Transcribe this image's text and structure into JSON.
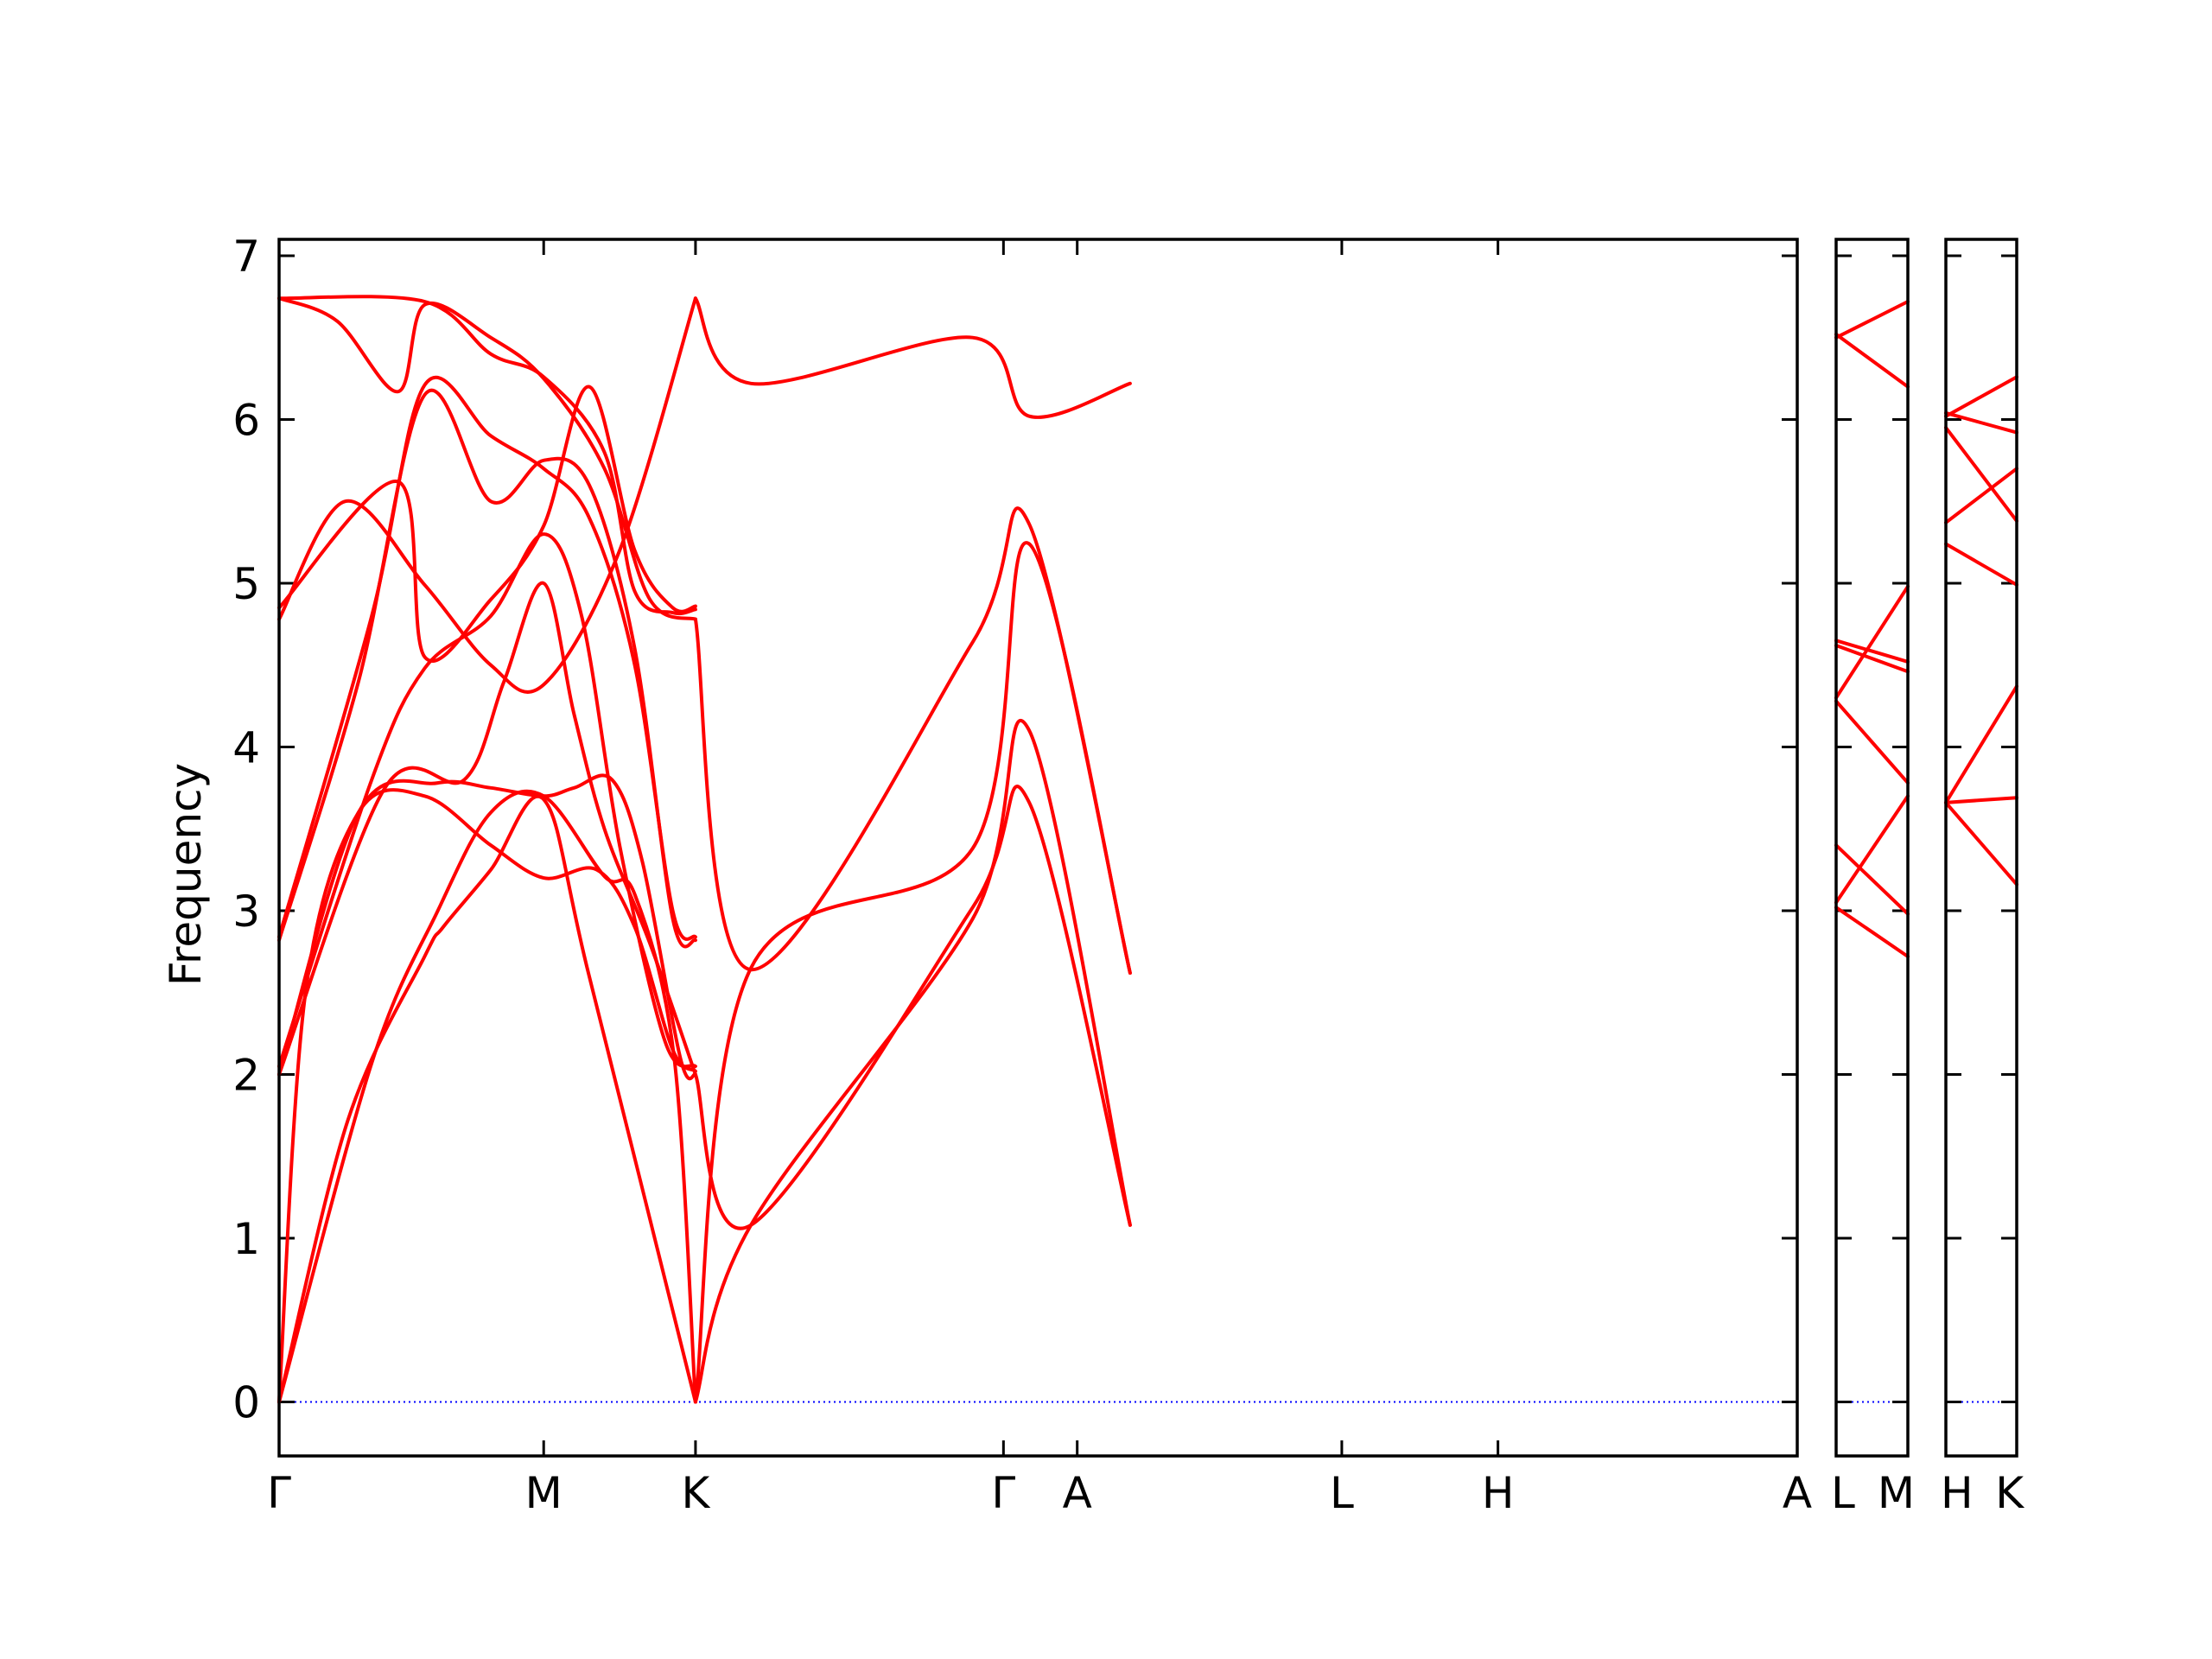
{
  "chart_data": {
    "type": "line",
    "title": "",
    "ylabel": "Frequency",
    "xlabel": "",
    "ylim": [
      -0.33,
      7.1
    ],
    "yticks": [
      "0",
      "1",
      "2",
      "3",
      "4",
      "5",
      "6",
      "7"
    ],
    "grid": false,
    "colors": {
      "bands": "#ff0000",
      "zero_line": "#0000ff",
      "frame": "#000000"
    },
    "panels": [
      {
        "path": [
          "Γ",
          "M",
          "K",
          "Γ",
          "A",
          "L",
          "H",
          "A"
        ],
        "bands": [
          {
            "name": "",
            "points": [
              [
                0,
                0
              ],
              [
                0.26,
                1.72
              ],
              [
                0.55,
                2.72
              ],
              [
                0.62,
                2.9
              ],
              [
                0.8,
                3.25
              ],
              [
                1.0,
                3.68
              ],
              [
                1.3,
                2.6
              ],
              [
                2.0,
                0
              ]
            ]
          },
          {
            "name": "",
            "points": [
              [
                0,
                0
              ],
              [
                0.35,
                2.07
              ],
              [
                0.6,
                3.0
              ],
              [
                0.8,
                3.6
              ],
              [
                1.0,
                3.7
              ],
              [
                1.4,
                3.21
              ],
              [
                1.6,
                3.1
              ],
              [
                1.86,
                2.1
              ],
              [
                2.0,
                0
              ]
            ]
          },
          {
            "name": "",
            "points": [
              [
                0,
                0
              ],
              [
                0.1,
                2.5
              ],
              [
                0.3,
                3.6
              ],
              [
                0.55,
                3.7
              ],
              [
                0.8,
                3.4
              ],
              [
                1.0,
                3.2
              ],
              [
                1.35,
                3.25
              ],
              [
                1.6,
                2.9
              ],
              [
                1.85,
                2.15
              ],
              [
                2.0,
                2.02
              ]
            ]
          },
          {
            "name": "",
            "points": [
              [
                0,
                2.0
              ],
              [
                0.3,
                3.6
              ],
              [
                0.6,
                3.78
              ],
              [
                0.8,
                3.75
              ],
              [
                1.0,
                3.7
              ],
              [
                1.2,
                3.75
              ],
              [
                1.45,
                3.8
              ],
              [
                1.65,
                3.3
              ],
              [
                1.9,
                2.1
              ],
              [
                2.0,
                2.0
              ]
            ]
          },
          {
            "name": "",
            "points": [
              [
                0,
                2.0
              ],
              [
                0.4,
                3.75
              ],
              [
                0.7,
                3.8
              ],
              [
                0.85,
                4.4
              ],
              [
                1.0,
                5.0
              ],
              [
                1.2,
                4.2
              ],
              [
                1.4,
                3.5
              ],
              [
                1.7,
                2.8
              ],
              [
                2.0,
                2.0
              ]
            ]
          },
          {
            "name": "",
            "points": [
              [
                0,
                2.05
              ],
              [
                0.35,
                3.8
              ],
              [
                0.55,
                4.48
              ],
              [
                0.8,
                4.8
              ],
              [
                1.0,
                5.3
              ],
              [
                1.25,
                4.8
              ],
              [
                1.5,
                3.4
              ],
              [
                1.8,
                2.2
              ],
              [
                2.0,
                2.05
              ]
            ]
          },
          {
            "name": "",
            "points": [
              [
                0,
                2.82
              ],
              [
                0.3,
                4.4
              ],
              [
                0.55,
                6.15
              ],
              [
                0.8,
                5.5
              ],
              [
                1.0,
                5.75
              ],
              [
                1.3,
                5.6
              ],
              [
                1.6,
                4.6
              ],
              [
                1.85,
                2.95
              ],
              [
                2.0,
                2.82
              ]
            ]
          },
          {
            "name": "",
            "points": [
              [
                0,
                2.84
              ],
              [
                0.35,
                4.8
              ],
              [
                0.55,
                6.21
              ],
              [
                0.8,
                5.9
              ],
              [
                1.0,
                5.7
              ],
              [
                1.3,
                5.4
              ],
              [
                1.6,
                4.5
              ],
              [
                1.85,
                3.0
              ],
              [
                2.0,
                2.84
              ]
            ]
          },
          {
            "name": "",
            "points": [
              [
                0,
                4.78
              ],
              [
                0.25,
                5.5
              ],
              [
                0.55,
                4.99
              ],
              [
                0.8,
                4.5
              ],
              [
                1.0,
                4.38
              ],
              [
                1.5,
                5.2
              ],
              [
                2.0,
                6.74
              ]
            ]
          },
          {
            "name": "",
            "points": [
              [
                0,
                4.85
              ],
              [
                0.45,
                5.62
              ],
              [
                0.55,
                4.55
              ],
              [
                0.8,
                4.9
              ],
              [
                1.0,
                5.35
              ],
              [
                1.3,
                6.2
              ],
              [
                1.6,
                5.2
              ],
              [
                1.85,
                4.85
              ],
              [
                2.0,
                4.86
              ]
            ]
          },
          {
            "name": "",
            "points": [
              [
                0,
                6.74
              ],
              [
                0.22,
                6.6
              ],
              [
                0.45,
                6.17
              ],
              [
                0.55,
                6.7
              ],
              [
                0.8,
                6.5
              ],
              [
                1.0,
                6.25
              ],
              [
                1.4,
                5.7
              ],
              [
                1.7,
                4.9
              ],
              [
                2.0,
                4.78
              ]
            ]
          },
          {
            "name": "",
            "points": [
              [
                0,
                6.74
              ],
              [
                0.55,
                6.72
              ],
              [
                0.8,
                6.4
              ],
              [
                1.0,
                6.26
              ],
              [
                1.4,
                5.8
              ],
              [
                1.6,
                4.95
              ],
              [
                1.85,
                4.82
              ],
              [
                2.0,
                4.84
              ]
            ]
          },
          {
            "name": "",
            "points": [
              [
                2.0,
                0
              ],
              [
                2.18,
                1.08
              ],
              [
                2.9,
                2.95
              ],
              [
                3.35,
                4.1
              ],
              [
                4.2,
                1.08
              ]
            ]
          },
          {
            "name": "",
            "points": [
              [
                2.0,
                0
              ],
              [
                2.18,
                2.65
              ],
              [
                2.9,
                3.38
              ],
              [
                3.35,
                5.24
              ],
              [
                4.2,
                2.62
              ]
            ]
          },
          {
            "name": "",
            "points": [
              [
                2.0,
                2.0
              ],
              [
                2.18,
                1.08
              ],
              [
                2.9,
                3.02
              ],
              [
                3.35,
                3.66
              ],
              [
                4.2,
                1.08
              ]
            ]
          },
          {
            "name": "",
            "points": [
              [
                2.0,
                4.78
              ],
              [
                2.18,
                2.64
              ],
              [
                2.9,
                4.64
              ],
              [
                3.35,
                5.36
              ],
              [
                4.2,
                2.62
              ]
            ]
          },
          {
            "name": "",
            "points": [
              [
                2.0,
                6.74
              ],
              [
                2.18,
                6.22
              ],
              [
                2.9,
                6.5
              ],
              [
                3.35,
                6.02
              ],
              [
                4.2,
                6.22
              ]
            ]
          }
        ]
      },
      {
        "path": [
          "L",
          "M"
        ],
        "bands": [
          {
            "name": "",
            "points": [
              [
                0,
                3.02
              ],
              [
                1,
                2.72
              ]
            ]
          },
          {
            "name": "",
            "points": [
              [
                0,
                3.4
              ],
              [
                1,
                2.98
              ]
            ]
          },
          {
            "name": "",
            "points": [
              [
                0,
                3.05
              ],
              [
                1,
                3.7
              ]
            ]
          },
          {
            "name": "",
            "points": [
              [
                0,
                4.28
              ],
              [
                1,
                3.78
              ]
            ]
          },
          {
            "name": "",
            "points": [
              [
                0,
                4.3
              ],
              [
                1,
                4.98
              ]
            ]
          },
          {
            "name": "",
            "points": [
              [
                0,
                4.65
              ],
              [
                1,
                4.52
              ]
            ]
          },
          {
            "name": "",
            "points": [
              [
                0,
                4.62
              ],
              [
                1,
                4.46
              ]
            ]
          },
          {
            "name": "",
            "points": [
              [
                0,
                6.5
              ],
              [
                1,
                6.72
              ]
            ]
          },
          {
            "name": "",
            "points": [
              [
                0,
                6.52
              ],
              [
                1,
                6.2
              ]
            ]
          }
        ]
      },
      {
        "path": [
          "H",
          "K"
        ],
        "bands": [
          {
            "name": "",
            "points": [
              [
                0,
                3.66
              ],
              [
                1,
                3.16
              ]
            ]
          },
          {
            "name": "",
            "points": [
              [
                0,
                3.66
              ],
              [
                1,
                3.69
              ]
            ]
          },
          {
            "name": "",
            "points": [
              [
                0,
                3.66
              ],
              [
                1,
                4.37
              ]
            ]
          },
          {
            "name": "",
            "points": [
              [
                0,
                5.24
              ],
              [
                1,
                4.99
              ]
            ]
          },
          {
            "name": "",
            "points": [
              [
                0,
                5.37
              ],
              [
                1,
                5.7
              ]
            ]
          },
          {
            "name": "",
            "points": [
              [
                0,
                5.95
              ],
              [
                1,
                5.38
              ]
            ]
          },
          {
            "name": "",
            "points": [
              [
                0,
                6.02
              ],
              [
                1,
                6.26
              ]
            ]
          },
          {
            "name": "",
            "points": [
              [
                0,
                6.04
              ],
              [
                1,
                5.92
              ]
            ]
          }
        ]
      }
    ]
  }
}
